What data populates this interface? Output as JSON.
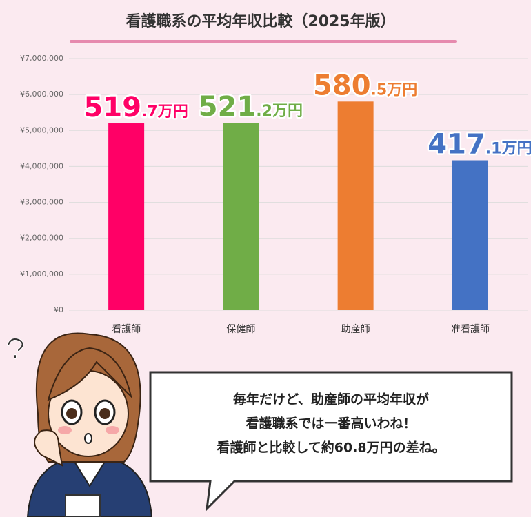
{
  "chart_data": {
    "type": "bar",
    "title": "看護職系の平均年収比較（2025年版）",
    "categories": [
      "看護師",
      "保健師",
      "助産師",
      "准看護師"
    ],
    "values": [
      5197000,
      5212000,
      5805000,
      4171000
    ],
    "value_labels": [
      "519.7万円",
      "521.2万円",
      "580.5万円",
      "417.1万円"
    ],
    "colors": [
      "#ff0066",
      "#70ad47",
      "#ed7d31",
      "#4472c4"
    ],
    "ylim": [
      0,
      7000000
    ],
    "yticks": [
      {
        "value": 0,
        "label": "¥0"
      },
      {
        "value": 1000000,
        "label": "¥1,000,000"
      },
      {
        "value": 2000000,
        "label": "¥2,000,000"
      },
      {
        "value": 3000000,
        "label": "¥3,000,000"
      },
      {
        "value": 4000000,
        "label": "¥4,000,000"
      },
      {
        "value": 5000000,
        "label": "¥5,000,000"
      },
      {
        "value": 6000000,
        "label": "¥6,000,000"
      },
      {
        "value": 7000000,
        "label": "¥7,000,000"
      }
    ],
    "grid": true
  },
  "speech": {
    "lines": [
      "毎年だけど、助産師の平均年収が",
      "看護職系では一番高いわね！",
      "看護師と比較して約60.8万円の差ね。"
    ]
  }
}
